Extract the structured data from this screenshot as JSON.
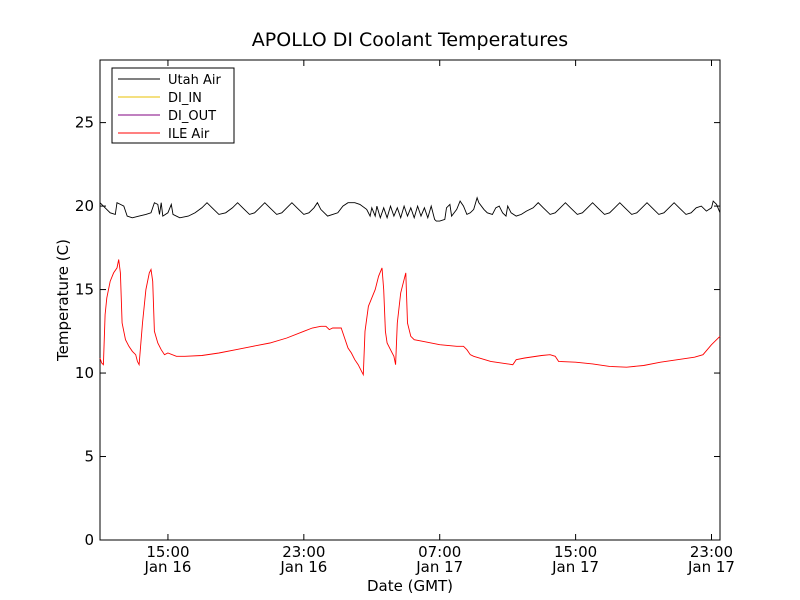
{
  "chart_data": {
    "type": "line",
    "title": "APOLLO DI Coolant Temperatures",
    "xlabel": "Date (GMT)",
    "ylabel": "Temperature (C)",
    "xlim": [
      11.0,
      47.5
    ],
    "ylim": [
      0,
      28.75
    ],
    "x_unit": "hours since 2013-01-16 00:00 GMT",
    "yticks": [
      0,
      5,
      10,
      15,
      20,
      25
    ],
    "xticks": [
      {
        "x": 15,
        "line1": "15:00",
        "line2": "Jan 16"
      },
      {
        "x": 23,
        "line1": "23:00",
        "line2": "Jan 16"
      },
      {
        "x": 31,
        "line1": "07:00",
        "line2": "Jan 17"
      },
      {
        "x": 39,
        "line1": "15:00",
        "line2": "Jan 17"
      },
      {
        "x": 47,
        "line1": "23:00",
        "line2": "Jan 17"
      }
    ],
    "legend_position": "top-left",
    "series": [
      {
        "name": "Utah Air",
        "color": "#000000",
        "points": [
          [
            11.0,
            20.2
          ],
          [
            11.3,
            19.9
          ],
          [
            11.6,
            19.6
          ],
          [
            11.9,
            19.5
          ],
          [
            12.0,
            20.2
          ],
          [
            12.2,
            20.1
          ],
          [
            12.4,
            20.0
          ],
          [
            12.6,
            19.4
          ],
          [
            12.9,
            19.3
          ],
          [
            13.3,
            19.4
          ],
          [
            13.7,
            19.5
          ],
          [
            14.0,
            19.6
          ],
          [
            14.2,
            20.2
          ],
          [
            14.4,
            20.1
          ],
          [
            14.5,
            19.5
          ],
          [
            14.6,
            20.2
          ],
          [
            14.7,
            19.4
          ],
          [
            15.0,
            19.6
          ],
          [
            15.2,
            20.1
          ],
          [
            15.3,
            19.5
          ],
          [
            15.7,
            19.3
          ],
          [
            16.2,
            19.4
          ],
          [
            16.6,
            19.6
          ],
          [
            17.0,
            19.9
          ],
          [
            17.3,
            20.2
          ],
          [
            17.6,
            19.9
          ],
          [
            18.0,
            19.5
          ],
          [
            18.4,
            19.6
          ],
          [
            18.8,
            19.9
          ],
          [
            19.1,
            20.2
          ],
          [
            19.4,
            19.9
          ],
          [
            19.8,
            19.5
          ],
          [
            20.1,
            19.6
          ],
          [
            20.4,
            19.9
          ],
          [
            20.7,
            20.2
          ],
          [
            21.0,
            19.9
          ],
          [
            21.4,
            19.5
          ],
          [
            21.7,
            19.6
          ],
          [
            22.0,
            19.9
          ],
          [
            22.3,
            20.2
          ],
          [
            22.6,
            19.9
          ],
          [
            23.0,
            19.5
          ],
          [
            23.3,
            19.6
          ],
          [
            23.6,
            19.9
          ],
          [
            23.8,
            20.2
          ],
          [
            24.0,
            19.8
          ],
          [
            24.4,
            19.4
          ],
          [
            24.7,
            19.5
          ],
          [
            25.0,
            19.6
          ],
          [
            25.3,
            20.0
          ],
          [
            25.6,
            20.2
          ],
          [
            26.0,
            20.2
          ],
          [
            26.3,
            20.1
          ],
          [
            26.7,
            19.8
          ],
          [
            26.9,
            19.4
          ],
          [
            27.0,
            19.9
          ],
          [
            27.2,
            19.4
          ],
          [
            27.3,
            20.0
          ],
          [
            27.5,
            19.3
          ],
          [
            27.7,
            19.9
          ],
          [
            27.9,
            19.3
          ],
          [
            28.1,
            20.0
          ],
          [
            28.3,
            19.4
          ],
          [
            28.5,
            19.9
          ],
          [
            28.7,
            19.3
          ],
          [
            28.9,
            20.0
          ],
          [
            29.1,
            19.4
          ],
          [
            29.3,
            19.9
          ],
          [
            29.5,
            19.3
          ],
          [
            29.7,
            20.0
          ],
          [
            29.9,
            19.4
          ],
          [
            30.1,
            19.9
          ],
          [
            30.3,
            19.3
          ],
          [
            30.5,
            20.0
          ],
          [
            30.7,
            19.2
          ],
          [
            30.8,
            19.1
          ],
          [
            31.0,
            19.1
          ],
          [
            31.3,
            19.2
          ],
          [
            31.4,
            19.9
          ],
          [
            31.6,
            20.1
          ],
          [
            31.7,
            19.4
          ],
          [
            32.0,
            19.8
          ],
          [
            32.2,
            20.3
          ],
          [
            32.4,
            20.0
          ],
          [
            32.6,
            19.5
          ],
          [
            32.8,
            19.6
          ],
          [
            33.0,
            19.8
          ],
          [
            33.2,
            20.5
          ],
          [
            33.3,
            20.2
          ],
          [
            33.6,
            19.8
          ],
          [
            33.8,
            19.6
          ],
          [
            34.1,
            19.5
          ],
          [
            34.3,
            19.9
          ],
          [
            34.5,
            20.0
          ],
          [
            34.7,
            19.6
          ],
          [
            34.9,
            19.4
          ],
          [
            35.0,
            20.0
          ],
          [
            35.2,
            19.6
          ],
          [
            35.5,
            19.4
          ],
          [
            35.8,
            19.5
          ],
          [
            36.1,
            19.7
          ],
          [
            36.5,
            19.9
          ],
          [
            36.8,
            20.2
          ],
          [
            37.1,
            19.9
          ],
          [
            37.5,
            19.5
          ],
          [
            37.8,
            19.6
          ],
          [
            38.1,
            19.9
          ],
          [
            38.4,
            20.2
          ],
          [
            38.7,
            19.9
          ],
          [
            39.1,
            19.5
          ],
          [
            39.4,
            19.6
          ],
          [
            39.7,
            19.9
          ],
          [
            40.0,
            20.2
          ],
          [
            40.3,
            19.9
          ],
          [
            40.7,
            19.5
          ],
          [
            41.0,
            19.6
          ],
          [
            41.3,
            19.9
          ],
          [
            41.6,
            20.2
          ],
          [
            41.9,
            19.9
          ],
          [
            42.3,
            19.5
          ],
          [
            42.6,
            19.6
          ],
          [
            42.9,
            19.9
          ],
          [
            43.2,
            20.2
          ],
          [
            43.5,
            19.9
          ],
          [
            43.9,
            19.5
          ],
          [
            44.2,
            19.6
          ],
          [
            44.5,
            19.9
          ],
          [
            44.8,
            20.2
          ],
          [
            45.1,
            19.9
          ],
          [
            45.5,
            19.5
          ],
          [
            45.8,
            19.6
          ],
          [
            46.1,
            19.9
          ],
          [
            46.4,
            20.0
          ],
          [
            46.7,
            19.7
          ],
          [
            47.0,
            19.9
          ],
          [
            47.1,
            20.3
          ],
          [
            47.3,
            20.1
          ],
          [
            47.5,
            19.6
          ]
        ]
      },
      {
        "name": "DI_IN",
        "color": "#e8c000",
        "points": []
      },
      {
        "name": "DI_OUT",
        "color": "#800080",
        "points": []
      },
      {
        "name": "ILE Air",
        "color": "#ff0000",
        "points": [
          [
            11.0,
            10.9
          ],
          [
            11.1,
            10.6
          ],
          [
            11.2,
            10.5
          ],
          [
            11.3,
            13.5
          ],
          [
            11.4,
            14.5
          ],
          [
            11.6,
            15.5
          ],
          [
            11.8,
            16.0
          ],
          [
            12.0,
            16.3
          ],
          [
            12.1,
            16.8
          ],
          [
            12.2,
            16.0
          ],
          [
            12.3,
            13.0
          ],
          [
            12.5,
            12.0
          ],
          [
            12.7,
            11.6
          ],
          [
            12.9,
            11.3
          ],
          [
            13.1,
            11.1
          ],
          [
            13.2,
            10.7
          ],
          [
            13.3,
            10.5
          ],
          [
            13.5,
            13.0
          ],
          [
            13.7,
            15.0
          ],
          [
            13.9,
            16.0
          ],
          [
            14.0,
            16.2
          ],
          [
            14.1,
            15.5
          ],
          [
            14.2,
            12.5
          ],
          [
            14.4,
            11.8
          ],
          [
            14.6,
            11.4
          ],
          [
            14.8,
            11.1
          ],
          [
            15.0,
            11.2
          ],
          [
            15.5,
            11.0
          ],
          [
            16.0,
            11.0
          ],
          [
            17.0,
            11.05
          ],
          [
            18.0,
            11.2
          ],
          [
            19.0,
            11.4
          ],
          [
            20.0,
            11.6
          ],
          [
            21.0,
            11.8
          ],
          [
            22.0,
            12.1
          ],
          [
            23.0,
            12.5
          ],
          [
            23.5,
            12.7
          ],
          [
            24.0,
            12.8
          ],
          [
            24.3,
            12.8
          ],
          [
            24.5,
            12.6
          ],
          [
            24.7,
            12.7
          ],
          [
            25.2,
            12.7
          ],
          [
            25.4,
            12.1
          ],
          [
            25.6,
            11.5
          ],
          [
            25.8,
            11.2
          ],
          [
            26.0,
            10.8
          ],
          [
            26.2,
            10.5
          ],
          [
            26.4,
            10.1
          ],
          [
            26.5,
            9.9
          ],
          [
            26.6,
            12.5
          ],
          [
            26.8,
            14.0
          ],
          [
            27.0,
            14.5
          ],
          [
            27.2,
            15.0
          ],
          [
            27.4,
            15.8
          ],
          [
            27.6,
            16.3
          ],
          [
            27.7,
            15.0
          ],
          [
            27.8,
            12.5
          ],
          [
            27.9,
            11.8
          ],
          [
            28.1,
            11.4
          ],
          [
            28.3,
            11.0
          ],
          [
            28.4,
            10.5
          ],
          [
            28.5,
            13.0
          ],
          [
            28.7,
            14.8
          ],
          [
            28.9,
            15.6
          ],
          [
            29.0,
            16.0
          ],
          [
            29.1,
            13.0
          ],
          [
            29.3,
            12.2
          ],
          [
            29.5,
            12.0
          ],
          [
            30.0,
            11.9
          ],
          [
            31.0,
            11.7
          ],
          [
            32.0,
            11.6
          ],
          [
            32.4,
            11.6
          ],
          [
            32.6,
            11.4
          ],
          [
            32.8,
            11.1
          ],
          [
            33.0,
            11.0
          ],
          [
            34.0,
            10.7
          ],
          [
            35.0,
            10.55
          ],
          [
            35.3,
            10.5
          ],
          [
            35.5,
            10.8
          ],
          [
            36.0,
            10.9
          ],
          [
            37.0,
            11.05
          ],
          [
            37.5,
            11.1
          ],
          [
            37.8,
            11.0
          ],
          [
            38.0,
            10.7
          ],
          [
            39.0,
            10.65
          ],
          [
            40.0,
            10.55
          ],
          [
            41.0,
            10.4
          ],
          [
            42.0,
            10.35
          ],
          [
            43.0,
            10.45
          ],
          [
            44.0,
            10.65
          ],
          [
            45.0,
            10.8
          ],
          [
            46.0,
            10.95
          ],
          [
            46.5,
            11.1
          ],
          [
            47.0,
            11.7
          ],
          [
            47.5,
            12.2
          ]
        ]
      }
    ]
  }
}
